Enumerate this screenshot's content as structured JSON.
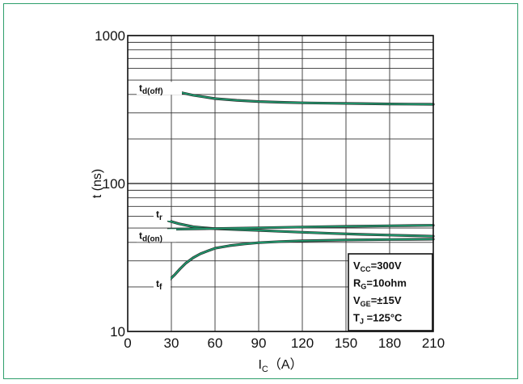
{
  "chart_data": {
    "type": "line",
    "title": "",
    "xlabel": "Ic (A)",
    "xlabel_main": "I",
    "xlabel_sub": "C",
    "xlabel_unit": "（A）",
    "ylabel": "t (ns)",
    "xlim": [
      0,
      210
    ],
    "ylim": [
      10,
      1000
    ],
    "yscale": "log",
    "grid": true,
    "x_ticks": [
      0,
      30,
      60,
      90,
      120,
      150,
      180,
      210
    ],
    "y_ticks": [
      10,
      100,
      1000
    ],
    "line_colors": [
      "#2a2a2a",
      "#1f9a6e"
    ],
    "series": [
      {
        "name": "td(off)",
        "label_main": "t",
        "label_sub": "d(off)",
        "x": [
          28,
          35,
          45,
          60,
          75,
          90,
          105,
          120,
          140,
          160,
          180,
          195,
          210
        ],
        "y": [
          440,
          415,
          395,
          375,
          365,
          358,
          354,
          351,
          349,
          347,
          345,
          344,
          343
        ]
      },
      {
        "name": "tr",
        "label_main": "t",
        "label_sub": "r",
        "x": [
          28,
          35,
          45,
          60,
          75,
          90,
          105,
          120,
          140,
          160,
          180,
          195,
          210
        ],
        "y": [
          56,
          53.5,
          51,
          49.5,
          48.8,
          48.2,
          47.5,
          46.8,
          46,
          45.3,
          44.8,
          44.4,
          44
        ]
      },
      {
        "name": "td(on)",
        "label_main": "t",
        "label_sub": "d(on)",
        "x": [
          28,
          45,
          60,
          90,
          120,
          150,
          180,
          210
        ],
        "y": [
          49,
          49.3,
          49.6,
          50.2,
          50.8,
          51.3,
          51.8,
          52.2
        ]
      },
      {
        "name": "tf",
        "label_main": "t",
        "label_sub": "f",
        "x": [
          28,
          32,
          36,
          40,
          45,
          50,
          55,
          60,
          70,
          80,
          90,
          105,
          120,
          150,
          180,
          210
        ],
        "y": [
          22,
          24,
          26.5,
          29,
          31.5,
          33.5,
          35,
          36.5,
          38,
          39,
          39.8,
          40.5,
          41,
          41.5,
          41.8,
          42
        ]
      }
    ],
    "conditions": [
      {
        "main": "V",
        "sub": "CC",
        "rest": "=300V"
      },
      {
        "main": "R",
        "sub": "G",
        "rest": "=10ohm"
      },
      {
        "main": "V",
        "sub": "GE",
        "rest": "=±15V"
      },
      {
        "main": "T",
        "sub": "J",
        "rest": " =125°C"
      }
    ]
  }
}
